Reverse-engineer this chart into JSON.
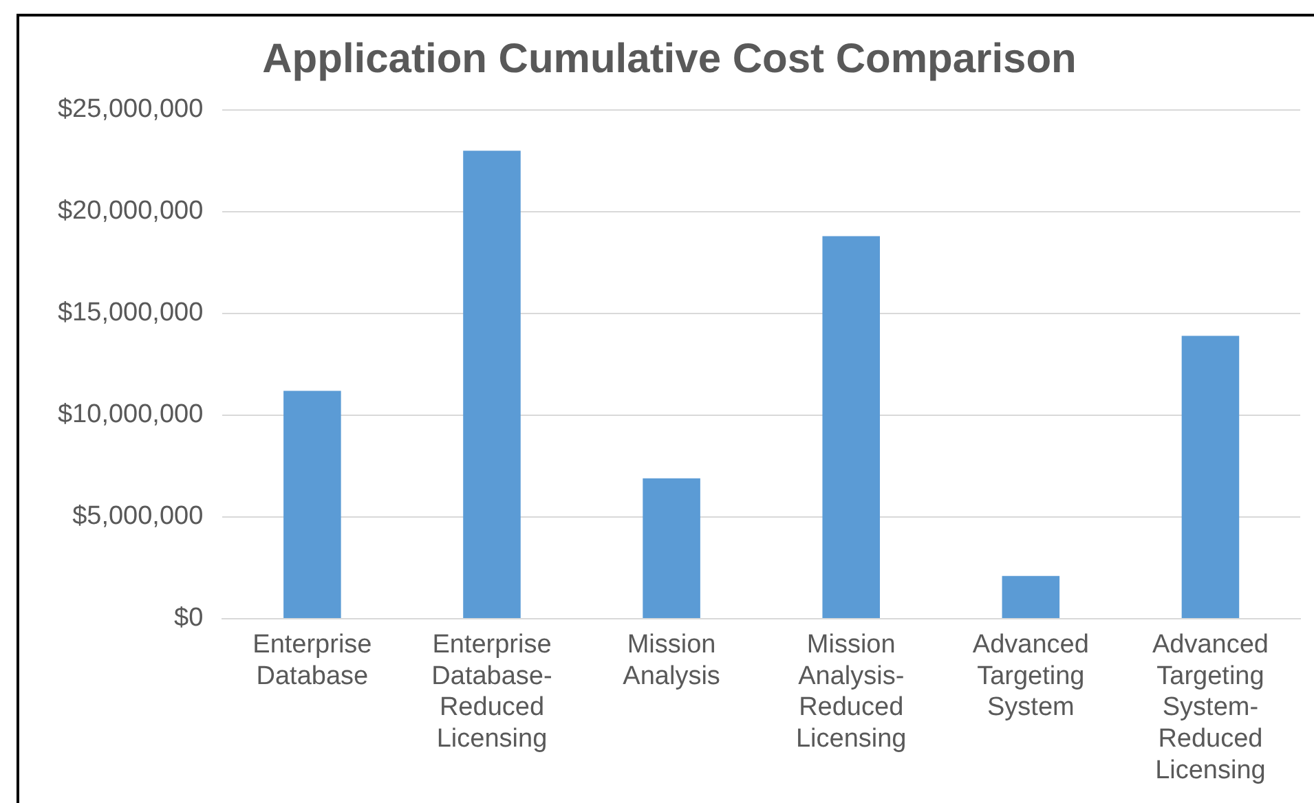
{
  "chart_data": {
    "type": "bar",
    "title": "Application Cumulative Cost Comparison",
    "categories": [
      "Enterprise Database",
      "Enterprise Database-Reduced Licensing",
      "Mission Analysis",
      "Mission Analysis-Reduced Licensing",
      "Advanced Targeting System",
      "Advanced Targeting System-Reduced Licensing"
    ],
    "values": [
      11200000,
      23000000,
      6900000,
      18800000,
      2100000,
      13900000
    ],
    "color": "#5b9bd5",
    "ylim": [
      0,
      25000000
    ],
    "yticks": [
      {
        "value": 0,
        "label": "$0"
      },
      {
        "value": 5000000,
        "label": "$5,000,000"
      },
      {
        "value": 10000000,
        "label": "$10,000,000"
      },
      {
        "value": 15000000,
        "label": "$15,000,000"
      },
      {
        "value": 20000000,
        "label": "$20,000,000"
      },
      {
        "value": 25000000,
        "label": "$25,000,000"
      }
    ],
    "grid": "y",
    "legend": false
  }
}
